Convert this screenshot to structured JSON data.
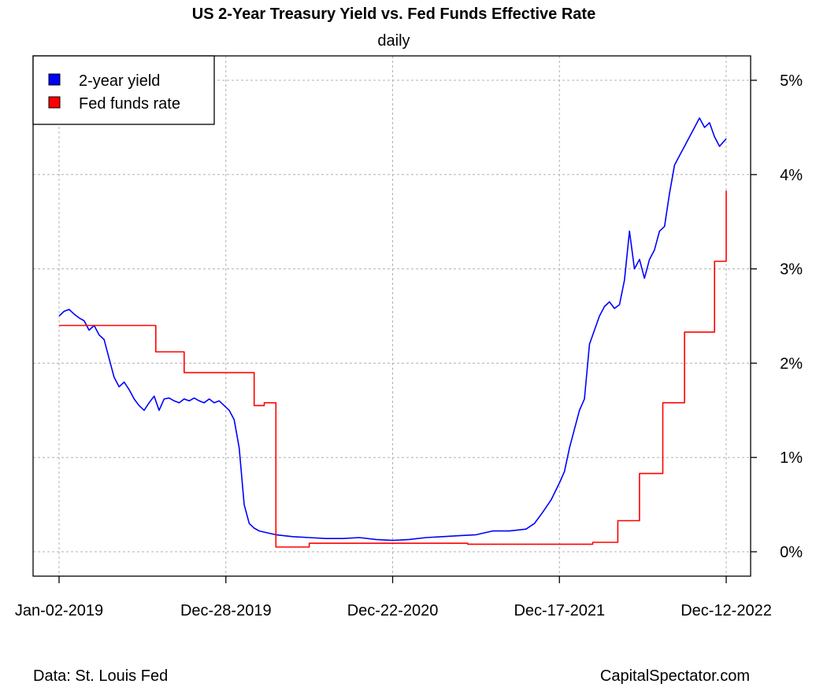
{
  "chart_data": {
    "type": "line",
    "title": "US 2-Year Treasury Yield vs. Fed Funds Effective Rate",
    "subtitle": "daily",
    "xlabel": "",
    "ylabel": "",
    "x_ticks": [
      "Jan-02-2019",
      "Dec-28-2019",
      "Dec-22-2020",
      "Dec-17-2021",
      "Dec-12-2022"
    ],
    "y_ticks": [
      "0%",
      "1%",
      "2%",
      "3%",
      "4%",
      "5%"
    ],
    "ylim": [
      -0.25,
      5.25
    ],
    "y_axis_side": "right",
    "grid": true,
    "legend_position": "top-left",
    "series": [
      {
        "name": "2-year yield",
        "color": "#0000ff",
        "x": [
          2019.0,
          2019.03,
          2019.06,
          2019.09,
          2019.12,
          2019.15,
          2019.18,
          2019.21,
          2019.24,
          2019.27,
          2019.3,
          2019.33,
          2019.36,
          2019.39,
          2019.42,
          2019.45,
          2019.48,
          2019.51,
          2019.54,
          2019.57,
          2019.6,
          2019.63,
          2019.66,
          2019.69,
          2019.72,
          2019.75,
          2019.78,
          2019.81,
          2019.84,
          2019.87,
          2019.9,
          2019.93,
          2019.96,
          2019.99,
          2020.02,
          2020.05,
          2020.08,
          2020.11,
          2020.14,
          2020.17,
          2020.2,
          2020.25,
          2020.3,
          2020.4,
          2020.5,
          2020.6,
          2020.7,
          2020.8,
          2020.9,
          2021.0,
          2021.1,
          2021.2,
          2021.3,
          2021.4,
          2021.5,
          2021.6,
          2021.7,
          2021.75,
          2021.8,
          2021.85,
          2021.9,
          2021.95,
          2022.0,
          2022.03,
          2022.06,
          2022.09,
          2022.12,
          2022.15,
          2022.18,
          2022.21,
          2022.24,
          2022.27,
          2022.3,
          2022.33,
          2022.36,
          2022.39,
          2022.42,
          2022.45,
          2022.48,
          2022.51,
          2022.54,
          2022.57,
          2022.6,
          2022.63,
          2022.66,
          2022.69,
          2022.72,
          2022.75,
          2022.78,
          2022.81,
          2022.84,
          2022.87,
          2022.9,
          2022.93,
          2022.96,
          2023.0
        ],
        "values": [
          2.5,
          2.55,
          2.57,
          2.52,
          2.48,
          2.45,
          2.35,
          2.4,
          2.3,
          2.25,
          2.05,
          1.85,
          1.75,
          1.8,
          1.72,
          1.62,
          1.55,
          1.5,
          1.58,
          1.65,
          1.5,
          1.62,
          1.63,
          1.6,
          1.58,
          1.62,
          1.6,
          1.63,
          1.6,
          1.58,
          1.62,
          1.58,
          1.6,
          1.55,
          1.5,
          1.4,
          1.1,
          0.5,
          0.3,
          0.25,
          0.22,
          0.2,
          0.18,
          0.16,
          0.15,
          0.14,
          0.14,
          0.15,
          0.13,
          0.12,
          0.13,
          0.15,
          0.16,
          0.17,
          0.18,
          0.22,
          0.22,
          0.23,
          0.24,
          0.3,
          0.42,
          0.55,
          0.73,
          0.85,
          1.1,
          1.3,
          1.5,
          1.62,
          2.2,
          2.35,
          2.5,
          2.6,
          2.65,
          2.58,
          2.62,
          2.88,
          3.4,
          3.0,
          3.1,
          2.9,
          3.1,
          3.2,
          3.4,
          3.45,
          3.8,
          4.1,
          4.2,
          4.3,
          4.4,
          4.5,
          4.6,
          4.5,
          4.55,
          4.4,
          4.3,
          4.38
        ]
      },
      {
        "name": "Fed funds rate",
        "color": "#ff0000",
        "step": true,
        "x": [
          2019.0,
          2019.4,
          2019.58,
          2019.75,
          2020.17,
          2020.23,
          2020.3,
          2020.5,
          2021.0,
          2021.45,
          2022.2,
          2022.35,
          2022.48,
          2022.62,
          2022.75,
          2022.93,
          2023.0
        ],
        "values": [
          2.4,
          2.4,
          2.12,
          1.9,
          1.55,
          1.58,
          0.05,
          0.09,
          0.09,
          0.08,
          0.1,
          0.33,
          0.83,
          1.58,
          2.33,
          3.08,
          3.83
        ]
      }
    ]
  },
  "footer": {
    "source": "Data: St. Louis Fed",
    "site": "CapitalSpectator.com"
  }
}
